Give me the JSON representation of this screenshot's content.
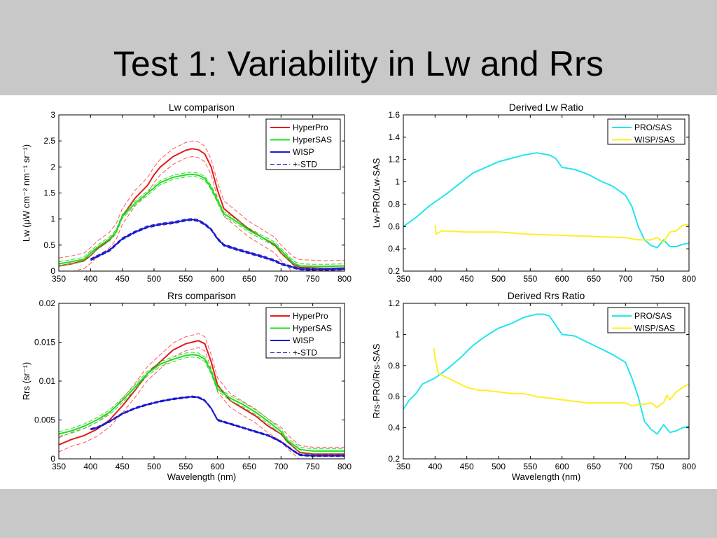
{
  "slide": {
    "title": "Test 1: Variability in Lw and Rrs"
  },
  "colors": {
    "hyperpro": "#e41a1a",
    "hypersas": "#22dd22",
    "wisp": "#1a1acc",
    "std_dash": "#ff5555",
    "pro_sas": "#22e5ee",
    "wisp_sas": "#ffee22",
    "figure_bg": "#ffffff",
    "slide_bg": "#c8c8c8"
  },
  "chart_data": [
    {
      "id": "lw",
      "type": "line",
      "title": "Lw comparison",
      "xlabel": "",
      "ylabel": "Lw (μW cm⁻² nm⁻¹ sr⁻¹)",
      "xlim": [
        350,
        800
      ],
      "ylim": [
        0,
        3
      ],
      "xticks": [
        350,
        400,
        450,
        500,
        550,
        600,
        650,
        700,
        750,
        800
      ],
      "yticks": [
        0,
        0.5,
        1,
        1.5,
        2,
        2.5,
        3
      ],
      "ytick_labels": [
        "0",
        "0.5",
        "1",
        "1.5",
        "2",
        "2.5",
        "3"
      ],
      "legend": {
        "position": "top-right",
        "entries": [
          "HyperPro",
          "HyperSAS",
          "WISP",
          "+-STD"
        ]
      },
      "grid": false,
      "series": [
        {
          "name": "HyperPro",
          "color": "#e41a1a",
          "std": 0.15,
          "x": [
            350,
            370,
            390,
            400,
            410,
            430,
            440,
            450,
            470,
            490,
            500,
            510,
            530,
            550,
            560,
            570,
            580,
            590,
            600,
            610,
            630,
            650,
            670,
            690,
            700,
            720,
            730,
            750,
            770,
            800
          ],
          "y": [
            0.1,
            0.14,
            0.2,
            0.3,
            0.42,
            0.6,
            0.75,
            1.05,
            1.4,
            1.65,
            1.85,
            2.0,
            2.2,
            2.32,
            2.35,
            2.33,
            2.25,
            2.0,
            1.55,
            1.2,
            1.0,
            0.8,
            0.65,
            0.5,
            0.35,
            0.12,
            0.07,
            0.06,
            0.05,
            0.06
          ]
        },
        {
          "name": "HyperSAS",
          "color": "#22dd22",
          "std": 0.04,
          "x": [
            350,
            370,
            390,
            400,
            410,
            430,
            440,
            450,
            470,
            490,
            500,
            510,
            530,
            550,
            560,
            570,
            580,
            590,
            600,
            610,
            630,
            650,
            670,
            690,
            700,
            720,
            730,
            750,
            770,
            800
          ],
          "y": [
            0.14,
            0.18,
            0.23,
            0.35,
            0.45,
            0.62,
            0.75,
            1.05,
            1.3,
            1.5,
            1.6,
            1.7,
            1.8,
            1.85,
            1.86,
            1.84,
            1.78,
            1.6,
            1.35,
            1.1,
            0.95,
            0.78,
            0.65,
            0.52,
            0.4,
            0.15,
            0.1,
            0.09,
            0.09,
            0.1
          ]
        },
        {
          "name": "WISP",
          "color": "#1a1acc",
          "std": 0.02,
          "x": [
            400,
            410,
            430,
            450,
            470,
            490,
            510,
            530,
            550,
            560,
            570,
            580,
            590,
            600,
            610,
            630,
            650,
            670,
            690,
            700,
            720,
            730,
            750,
            770,
            800
          ],
          "y": [
            0.22,
            0.28,
            0.4,
            0.62,
            0.75,
            0.85,
            0.9,
            0.93,
            0.98,
            0.99,
            0.97,
            0.9,
            0.8,
            0.62,
            0.5,
            0.42,
            0.35,
            0.28,
            0.2,
            0.14,
            0.07,
            0.04,
            0.03,
            0.03,
            0.04
          ]
        }
      ]
    },
    {
      "id": "rrs",
      "type": "line",
      "title": "Rrs comparison",
      "xlabel": "Wavelength (nm)",
      "ylabel": "Rrs (sr⁻¹)",
      "xlim": [
        350,
        800
      ],
      "ylim": [
        0,
        0.02
      ],
      "xticks": [
        350,
        400,
        450,
        500,
        550,
        600,
        650,
        700,
        750,
        800
      ],
      "yticks": [
        0,
        0.005,
        0.01,
        0.015,
        0.02
      ],
      "ytick_labels": [
        "0",
        "0.005",
        "0.01",
        "0.015",
        "0.02"
      ],
      "legend": {
        "position": "top-right",
        "entries": [
          "HyperPro",
          "HyperSAS",
          "WISP",
          "+-STD"
        ]
      },
      "grid": false,
      "series": [
        {
          "name": "HyperPro",
          "color": "#e41a1a",
          "std": 0.0009,
          "x": [
            350,
            370,
            390,
            410,
            430,
            450,
            470,
            490,
            510,
            530,
            550,
            560,
            570,
            580,
            590,
            600,
            620,
            640,
            660,
            680,
            700,
            710,
            730,
            750,
            800
          ],
          "y": [
            0.0018,
            0.0025,
            0.003,
            0.0038,
            0.005,
            0.0068,
            0.0088,
            0.011,
            0.0125,
            0.014,
            0.0148,
            0.015,
            0.0152,
            0.0148,
            0.0125,
            0.0095,
            0.0075,
            0.0065,
            0.0055,
            0.0042,
            0.0032,
            0.0022,
            0.0008,
            0.0006,
            0.0006
          ]
        },
        {
          "name": "HyperSAS",
          "color": "#22dd22",
          "std": 0.0003,
          "x": [
            350,
            370,
            390,
            410,
            430,
            450,
            470,
            490,
            510,
            530,
            550,
            560,
            570,
            580,
            590,
            600,
            620,
            640,
            660,
            680,
            700,
            710,
            730,
            750,
            800
          ],
          "y": [
            0.0032,
            0.0036,
            0.0042,
            0.005,
            0.006,
            0.0075,
            0.0092,
            0.011,
            0.0122,
            0.0128,
            0.0133,
            0.0134,
            0.0133,
            0.0128,
            0.0112,
            0.009,
            0.0078,
            0.007,
            0.006,
            0.0048,
            0.0035,
            0.0024,
            0.0012,
            0.001,
            0.001
          ]
        },
        {
          "name": "WISP",
          "color": "#1a1acc",
          "std": 0.0001,
          "x": [
            400,
            410,
            430,
            450,
            470,
            490,
            510,
            530,
            550,
            560,
            570,
            580,
            590,
            600,
            620,
            640,
            660,
            680,
            700,
            720,
            730,
            750,
            800
          ],
          "y": [
            0.0038,
            0.004,
            0.0048,
            0.0058,
            0.0065,
            0.007,
            0.0074,
            0.0077,
            0.0079,
            0.008,
            0.0079,
            0.0075,
            0.0065,
            0.005,
            0.0045,
            0.004,
            0.0035,
            0.003,
            0.0022,
            0.001,
            0.0005,
            0.0004,
            0.0004
          ]
        }
      ]
    },
    {
      "id": "lw_ratio",
      "type": "line",
      "title": "Derived Lw Ratio",
      "xlabel": "",
      "ylabel": "Lw-PRO/Lw-SAS",
      "xlim": [
        350,
        800
      ],
      "ylim": [
        0.2,
        1.6
      ],
      "xticks": [
        350,
        400,
        450,
        500,
        550,
        600,
        650,
        700,
        750,
        800
      ],
      "yticks": [
        0.2,
        0.4,
        0.6,
        0.8,
        1,
        1.2,
        1.4,
        1.6
      ],
      "ytick_labels": [
        "0.2",
        "0.4",
        "0.6",
        "0.8",
        "1",
        "1.2",
        "1.4",
        "1.6"
      ],
      "legend": {
        "position": "top-right",
        "entries": [
          "PRO/SAS",
          "WISP/SAS"
        ]
      },
      "grid": false,
      "series": [
        {
          "name": "PRO/SAS",
          "color": "#22e5ee",
          "x": [
            350,
            370,
            390,
            400,
            420,
            440,
            460,
            480,
            500,
            520,
            540,
            560,
            570,
            580,
            590,
            600,
            620,
            640,
            660,
            680,
            700,
            710,
            720,
            730,
            740,
            750,
            760,
            770,
            780,
            790,
            800
          ],
          "y": [
            0.6,
            0.68,
            0.78,
            0.82,
            0.9,
            0.99,
            1.08,
            1.13,
            1.18,
            1.21,
            1.24,
            1.26,
            1.25,
            1.24,
            1.21,
            1.13,
            1.11,
            1.07,
            1.01,
            0.96,
            0.88,
            0.78,
            0.6,
            0.48,
            0.43,
            0.41,
            0.48,
            0.42,
            0.42,
            0.44,
            0.45
          ]
        },
        {
          "name": "WISP/SAS",
          "color": "#ffee22",
          "x": [
            400,
            402,
            410,
            420,
            450,
            500,
            550,
            600,
            650,
            700,
            720,
            740,
            750,
            760,
            770,
            780,
            790,
            800
          ],
          "y": [
            0.61,
            0.53,
            0.56,
            0.56,
            0.55,
            0.55,
            0.53,
            0.52,
            0.51,
            0.5,
            0.48,
            0.48,
            0.5,
            0.46,
            0.55,
            0.56,
            0.61,
            0.62
          ]
        }
      ]
    },
    {
      "id": "rrs_ratio",
      "type": "line",
      "title": "Derived Rrs Ratio",
      "xlabel": "Wavelength (nm)",
      "ylabel": "Rrs-PRO/Rrs-SAS",
      "xlim": [
        350,
        800
      ],
      "ylim": [
        0.2,
        1.2
      ],
      "xticks": [
        350,
        400,
        450,
        500,
        550,
        600,
        650,
        700,
        750,
        800
      ],
      "yticks": [
        0.2,
        0.4,
        0.6,
        0.8,
        1,
        1.2
      ],
      "ytick_labels": [
        "0.2",
        "0.4",
        "0.6",
        "0.8",
        "1",
        "1.2"
      ],
      "legend": {
        "position": "top-right",
        "entries": [
          "PRO/SAS",
          "WISP/SAS"
        ]
      },
      "grid": false,
      "series": [
        {
          "name": "PRO/SAS",
          "color": "#22e5ee",
          "x": [
            350,
            360,
            370,
            380,
            390,
            400,
            410,
            420,
            440,
            460,
            480,
            500,
            520,
            540,
            560,
            570,
            580,
            590,
            600,
            620,
            640,
            660,
            680,
            700,
            710,
            720,
            730,
            740,
            750,
            760,
            770,
            780,
            790,
            800
          ],
          "y": [
            0.52,
            0.58,
            0.62,
            0.68,
            0.7,
            0.72,
            0.75,
            0.78,
            0.85,
            0.93,
            0.99,
            1.04,
            1.07,
            1.11,
            1.13,
            1.13,
            1.12,
            1.06,
            1.0,
            0.99,
            0.95,
            0.91,
            0.87,
            0.82,
            0.72,
            0.6,
            0.44,
            0.39,
            0.36,
            0.42,
            0.37,
            0.38,
            0.4,
            0.41
          ]
        },
        {
          "name": "WISP/SAS",
          "color": "#ffee22",
          "x": [
            398,
            400,
            405,
            410,
            420,
            430,
            440,
            450,
            460,
            470,
            480,
            500,
            520,
            540,
            560,
            580,
            600,
            620,
            640,
            660,
            680,
            700,
            710,
            720,
            730,
            740,
            750,
            755,
            760,
            765,
            770,
            780,
            790,
            800
          ],
          "y": [
            0.91,
            0.85,
            0.75,
            0.74,
            0.72,
            0.7,
            0.68,
            0.66,
            0.65,
            0.64,
            0.64,
            0.63,
            0.62,
            0.62,
            0.6,
            0.59,
            0.58,
            0.57,
            0.56,
            0.56,
            0.56,
            0.56,
            0.54,
            0.55,
            0.55,
            0.56,
            0.53,
            0.55,
            0.56,
            0.61,
            0.58,
            0.63,
            0.66,
            0.68
          ]
        }
      ]
    }
  ]
}
